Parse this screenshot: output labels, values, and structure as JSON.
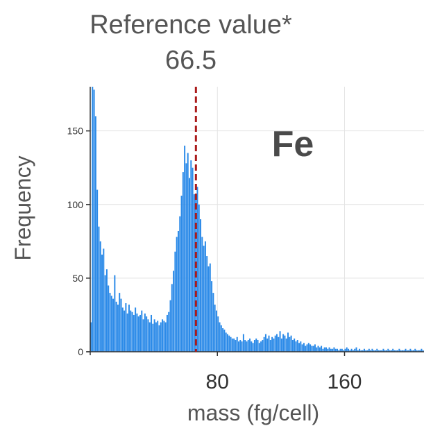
{
  "chart_data": {
    "type": "bar",
    "title": "Reference value*",
    "subtitle": "66.5",
    "xlabel": "mass (fg/cell)",
    "ylabel": "Frequency",
    "annotation": "Fe",
    "reference_value": 66.5,
    "xlim": [
      0,
      210
    ],
    "ylim": [
      0,
      180
    ],
    "x_ticks": [
      80,
      160
    ],
    "y_ticks": [
      0,
      50,
      100,
      150
    ],
    "grid": true,
    "bar_color": "#2b8ae8",
    "reference_color": "#aa1a1a",
    "bin_width": 1,
    "x": [
      0,
      1,
      2,
      3,
      4,
      5,
      6,
      7,
      8,
      9,
      10,
      11,
      12,
      13,
      14,
      15,
      16,
      17,
      18,
      19,
      20,
      21,
      22,
      23,
      24,
      25,
      26,
      27,
      28,
      29,
      30,
      31,
      32,
      33,
      34,
      35,
      36,
      37,
      38,
      39,
      40,
      41,
      42,
      43,
      44,
      45,
      46,
      47,
      48,
      49,
      50,
      51,
      52,
      53,
      54,
      55,
      56,
      57,
      58,
      59,
      60,
      61,
      62,
      63,
      64,
      65,
      66,
      67,
      68,
      69,
      70,
      71,
      72,
      73,
      74,
      75,
      76,
      77,
      78,
      79,
      80,
      81,
      82,
      83,
      84,
      85,
      86,
      87,
      88,
      89,
      90,
      91,
      92,
      93,
      94,
      95,
      96,
      97,
      98,
      99,
      100,
      101,
      102,
      103,
      104,
      105,
      106,
      107,
      108,
      109,
      110,
      111,
      112,
      113,
      114,
      115,
      116,
      117,
      118,
      119,
      120,
      121,
      122,
      123,
      124,
      125,
      126,
      127,
      128,
      129,
      130,
      131,
      132,
      133,
      134,
      135,
      136,
      137,
      138,
      139,
      140,
      141,
      142,
      143,
      144,
      145,
      146,
      147,
      148,
      149,
      150,
      151,
      152,
      153,
      154,
      155,
      156,
      157,
      158,
      159,
      160,
      161,
      162,
      163,
      164,
      165,
      166,
      167,
      168,
      169,
      170,
      171,
      172,
      173,
      174,
      175,
      176,
      177,
      178,
      179,
      180,
      181,
      182,
      183,
      184,
      185,
      186,
      187,
      188,
      189,
      190,
      191,
      192,
      193,
      194,
      195,
      196,
      197,
      198,
      199,
      200,
      201,
      202,
      203,
      204,
      205,
      206,
      207,
      208,
      209
    ],
    "values": [
      20,
      180,
      178,
      160,
      110,
      85,
      75,
      66,
      70,
      52,
      56,
      45,
      40,
      38,
      36,
      52,
      34,
      32,
      40,
      36,
      30,
      28,
      33,
      26,
      32,
      28,
      27,
      25,
      30,
      26,
      24,
      25,
      28,
      22,
      26,
      24,
      22,
      20,
      25,
      19,
      22,
      20,
      21,
      18,
      20,
      22,
      21,
      20,
      25,
      27,
      35,
      46,
      55,
      68,
      78,
      82,
      92,
      106,
      122,
      140,
      128,
      135,
      118,
      130,
      125,
      107,
      105,
      112,
      100,
      90,
      78,
      72,
      75,
      65,
      58,
      60,
      48,
      40,
      32,
      28,
      24,
      20,
      18,
      16,
      15,
      13,
      12,
      11,
      10,
      9,
      9,
      8,
      10,
      7,
      8,
      7,
      12,
      8,
      7,
      8,
      9,
      7,
      6,
      8,
      9,
      8,
      6,
      7,
      8,
      10,
      12,
      9,
      11,
      8,
      10,
      9,
      11,
      12,
      10,
      14,
      9,
      12,
      11,
      9,
      13,
      10,
      11,
      8,
      9,
      7,
      8,
      6,
      7,
      5,
      6,
      4,
      5,
      6,
      5,
      4,
      4,
      5,
      3,
      4,
      3,
      4,
      2,
      3,
      3,
      2,
      3,
      2,
      2,
      3,
      2,
      2,
      1,
      2,
      2,
      1,
      2,
      3,
      2,
      1,
      2,
      1,
      2,
      3,
      1,
      2,
      1,
      1,
      2,
      1,
      1,
      2,
      1,
      2,
      1,
      1,
      2,
      1,
      1,
      1,
      2,
      1,
      1,
      2,
      1,
      1,
      2,
      1,
      1,
      1,
      2,
      1,
      1,
      1,
      2,
      1,
      1,
      2,
      1,
      1,
      2,
      1,
      1,
      1,
      2,
      1
    ]
  }
}
